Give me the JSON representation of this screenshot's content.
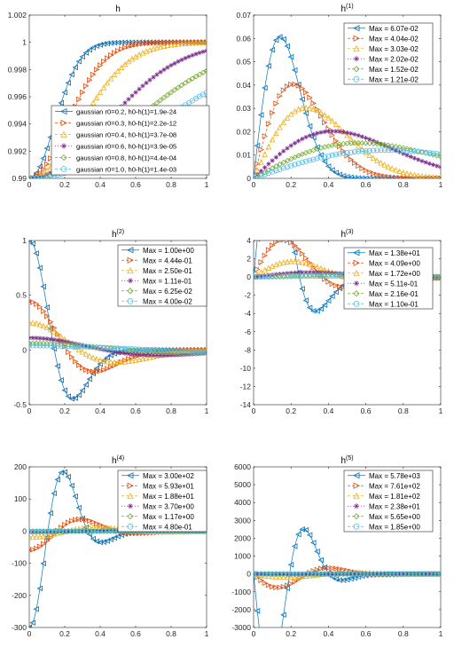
{
  "colors": {
    "blue": "#0072BD",
    "orange": "#D95319",
    "yellow": "#EDB120",
    "purple": "#7E2F8E",
    "green": "#77AC30",
    "cyan": "#4DBEEE"
  },
  "chart_data": [
    {
      "type": "line",
      "title": "h",
      "title_sup": "",
      "xlim": [
        0,
        1
      ],
      "ylim": [
        0.99,
        1.002
      ],
      "xticks": [
        "0",
        "0.2",
        "0.4",
        "0.6",
        "0.8",
        "1"
      ],
      "yticks": [
        "0.99",
        "0.992",
        "0.994",
        "0.996",
        "0.998",
        "1",
        "1.002"
      ],
      "ytick_values": [
        0.99,
        0.992,
        0.994,
        0.996,
        0.998,
        1.0,
        1.002
      ],
      "legend_position": "lower-right",
      "series": [
        {
          "name": "gaussian r0=0.2, h0-h(1)=1.9e-24",
          "r0": 0.2,
          "marker": "triangle-left",
          "color": "#0072BD"
        },
        {
          "name": "gaussian r0=0.3, h0-h(1)=2.2e-12",
          "r0": 0.3,
          "marker": "triangle-right",
          "color": "#D95319"
        },
        {
          "name": "gaussian r0=0.4, h0-h(1)=3.7e-08",
          "r0": 0.4,
          "marker": "triangle-up",
          "color": "#EDB120"
        },
        {
          "name": "gaussian r0=0.6, h0-h(1)=3.9e-05",
          "r0": 0.6,
          "marker": "star",
          "color": "#7E2F8E"
        },
        {
          "name": "gaussian r0=0.8, h0-h(1)=4.4e-04",
          "r0": 0.8,
          "marker": "diamond",
          "color": "#77AC30"
        },
        {
          "name": "gaussian r0=1.0, h0-h(1)=1.4e-03",
          "r0": 1.0,
          "marker": "circle",
          "color": "#4DBEEE"
        }
      ]
    },
    {
      "type": "line",
      "title": "h",
      "title_sup": "(1)",
      "xlim": [
        0,
        1
      ],
      "ylim": [
        0,
        0.07
      ],
      "xticks": [
        "0",
        "0.2",
        "0.4",
        "0.6",
        "0.8",
        "1"
      ],
      "yticks": [
        "0",
        "0.01",
        "0.02",
        "0.03",
        "0.04",
        "0.05",
        "0.06",
        "0.07"
      ],
      "ytick_values": [
        0,
        0.01,
        0.02,
        0.03,
        0.04,
        0.05,
        0.06,
        0.07
      ],
      "legend_position": "top-right",
      "series": [
        {
          "name": "Max = 6.07e-02",
          "max": 0.0607,
          "r0": 0.2,
          "marker": "triangle-left",
          "color": "#0072BD"
        },
        {
          "name": "Max = 4.04e-02",
          "max": 0.0404,
          "r0": 0.3,
          "marker": "triangle-right",
          "color": "#D95319"
        },
        {
          "name": "Max = 3.03e-02",
          "max": 0.0303,
          "r0": 0.4,
          "marker": "triangle-up",
          "color": "#EDB120"
        },
        {
          "name": "Max = 2.02e-02",
          "max": 0.0202,
          "r0": 0.6,
          "marker": "star",
          "color": "#7E2F8E"
        },
        {
          "name": "Max = 1.52e-02",
          "max": 0.0152,
          "r0": 0.8,
          "marker": "diamond",
          "color": "#77AC30"
        },
        {
          "name": "Max = 1.21e-02",
          "max": 0.0121,
          "r0": 1.0,
          "marker": "circle",
          "color": "#4DBEEE"
        }
      ]
    },
    {
      "type": "line",
      "title": "h",
      "title_sup": "(2)",
      "xlim": [
        0,
        1
      ],
      "ylim": [
        -0.5,
        1
      ],
      "xticks": [
        "0",
        "0.2",
        "0.4",
        "0.6",
        "0.8",
        "1"
      ],
      "yticks": [
        "-0.5",
        "0",
        "0.5",
        "1"
      ],
      "ytick_values": [
        -0.5,
        0,
        0.5,
        1
      ],
      "legend_position": "top-right",
      "series": [
        {
          "name": "Max = 1.00e+00",
          "max": 1.0,
          "r0": 0.2,
          "marker": "triangle-left",
          "color": "#0072BD"
        },
        {
          "name": "Max = 4.44e-01",
          "max": 0.444,
          "r0": 0.3,
          "marker": "triangle-right",
          "color": "#D95319"
        },
        {
          "name": "Max = 2.50e-01",
          "max": 0.25,
          "r0": 0.4,
          "marker": "triangle-up",
          "color": "#EDB120"
        },
        {
          "name": "Max = 1.11e-01",
          "max": 0.111,
          "r0": 0.6,
          "marker": "star",
          "color": "#7E2F8E"
        },
        {
          "name": "Max = 6.25e-02",
          "max": 0.0625,
          "r0": 0.8,
          "marker": "diamond",
          "color": "#77AC30"
        },
        {
          "name": "Max = 4.00e-02",
          "max": 0.04,
          "r0": 1.0,
          "marker": "circle",
          "color": "#4DBEEE"
        }
      ]
    },
    {
      "type": "line",
      "title": "h",
      "title_sup": "(3)",
      "xlim": [
        0,
        1
      ],
      "ylim": [
        -14,
        4
      ],
      "xticks": [
        "0",
        "0.2",
        "0.4",
        "0.6",
        "0.8",
        "1"
      ],
      "yticks": [
        "-14",
        "-12",
        "-10",
        "-8",
        "-6",
        "-4",
        "-2",
        "0",
        "2",
        "4"
      ],
      "ytick_values": [
        -14,
        -12,
        -10,
        -8,
        -6,
        -4,
        -2,
        0,
        2,
        4
      ],
      "legend_position": "top-right",
      "series": [
        {
          "name": "Max = 1.38e+01",
          "max": 13.8,
          "r0": 0.2,
          "marker": "triangle-left",
          "color": "#0072BD"
        },
        {
          "name": "Max = 4.09e+00",
          "max": 4.09,
          "r0": 0.3,
          "marker": "triangle-right",
          "color": "#D95319"
        },
        {
          "name": "Max = 1.72e+00",
          "max": 1.72,
          "r0": 0.4,
          "marker": "triangle-up",
          "color": "#EDB120"
        },
        {
          "name": "Max = 5.11e-01",
          "max": 0.511,
          "r0": 0.6,
          "marker": "star",
          "color": "#7E2F8E"
        },
        {
          "name": "Max = 2.16e-01",
          "max": 0.216,
          "r0": 0.8,
          "marker": "diamond",
          "color": "#77AC30"
        },
        {
          "name": "Max = 1.10e-01",
          "max": 0.11,
          "r0": 1.0,
          "marker": "circle",
          "color": "#4DBEEE"
        }
      ]
    },
    {
      "type": "line",
      "title": "h",
      "title_sup": "(4)",
      "xlim": [
        0,
        1
      ],
      "ylim": [
        -300,
        200
      ],
      "xticks": [
        "0",
        "0.2",
        "0.4",
        "0.6",
        "0.8",
        "1"
      ],
      "yticks": [
        "-300",
        "-200",
        "-100",
        "0",
        "100",
        "200"
      ],
      "ytick_values": [
        -300,
        -200,
        -100,
        0,
        100,
        200
      ],
      "legend_position": "top-right",
      "series": [
        {
          "name": "Max = 3.00e+02",
          "max": 300,
          "r0": 0.2,
          "marker": "triangle-left",
          "color": "#0072BD"
        },
        {
          "name": "Max = 5.93e+01",
          "max": 59.3,
          "r0": 0.3,
          "marker": "triangle-right",
          "color": "#D95319"
        },
        {
          "name": "Max = 1.88e+01",
          "max": 18.8,
          "r0": 0.4,
          "marker": "triangle-up",
          "color": "#EDB120"
        },
        {
          "name": "Max = 3.70e+00",
          "max": 3.7,
          "r0": 0.6,
          "marker": "star",
          "color": "#7E2F8E"
        },
        {
          "name": "Max = 1.17e+00",
          "max": 1.17,
          "r0": 0.8,
          "marker": "diamond",
          "color": "#77AC30"
        },
        {
          "name": "Max = 4.80e-01",
          "max": 0.48,
          "r0": 1.0,
          "marker": "circle",
          "color": "#4DBEEE"
        }
      ]
    },
    {
      "type": "line",
      "title": "h",
      "title_sup": "(5)",
      "xlim": [
        0,
        1
      ],
      "ylim": [
        -3000,
        6000
      ],
      "xticks": [
        "0",
        "0.2",
        "0.4",
        "0.6",
        "0.8",
        "1"
      ],
      "yticks": [
        "-3000",
        "-2000",
        "-1000",
        "0",
        "1000",
        "2000",
        "3000",
        "4000",
        "5000",
        "6000"
      ],
      "ytick_values": [
        -3000,
        -2000,
        -1000,
        0,
        1000,
        2000,
        3000,
        4000,
        5000,
        6000
      ],
      "legend_position": "top-right",
      "series": [
        {
          "name": "Max = 5.78e+03",
          "max": 5780,
          "r0": 0.2,
          "marker": "triangle-left",
          "color": "#0072BD"
        },
        {
          "name": "Max = 7.61e+02",
          "max": 761,
          "r0": 0.3,
          "marker": "triangle-right",
          "color": "#D95319"
        },
        {
          "name": "Max = 1.81e+02",
          "max": 181,
          "r0": 0.4,
          "marker": "triangle-up",
          "color": "#EDB120"
        },
        {
          "name": "Max = 2.38e+01",
          "max": 23.8,
          "r0": 0.6,
          "marker": "star",
          "color": "#7E2F8E"
        },
        {
          "name": "Max = 5.65e+00",
          "max": 5.65,
          "r0": 0.8,
          "marker": "diamond",
          "color": "#77AC30"
        },
        {
          "name": "Max = 1.85e+00",
          "max": 1.85,
          "r0": 1.0,
          "marker": "circle",
          "color": "#4DBEEE"
        }
      ]
    }
  ]
}
